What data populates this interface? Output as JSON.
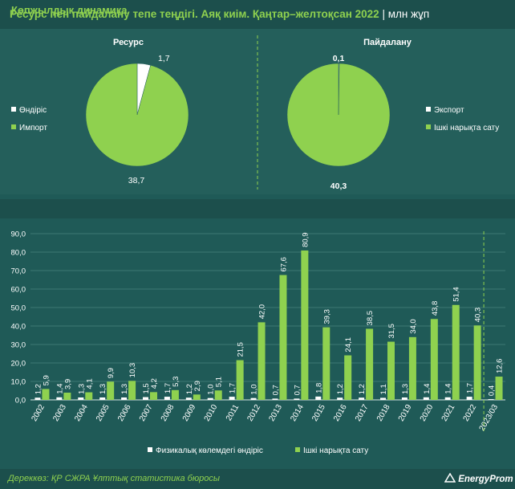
{
  "title": "Ресурс пен пайдалану тепе теңдігі. Аяқ киім. Қаңтар–желтоқсан 2022",
  "unit": "млн жұп",
  "section_title": "Көпжылдық динамика",
  "source": "Дереккөз: ҚР СЖРА Ұлттық статистика бюросы",
  "logo": "EnergyProm",
  "colors": {
    "green": "#8fd14f",
    "white": "#ffffff",
    "bg": "#1f5a57"
  },
  "chart_data": [
    {
      "type": "pie",
      "title": "Ресурс",
      "labels": [
        "Өндіріс",
        "Импорт"
      ],
      "values": [
        1.7,
        38.7
      ],
      "value_labels": [
        "1,7",
        "38,7"
      ],
      "colors": [
        "#ffffff",
        "#8fd14f"
      ]
    },
    {
      "type": "pie",
      "title": "Пайдалану",
      "labels": [
        "Экспорт",
        "Ішкі нарықта сату"
      ],
      "values": [
        0.1,
        40.3
      ],
      "value_labels": [
        "0,1",
        "40,3"
      ],
      "colors": [
        "#ffffff",
        "#8fd14f"
      ]
    },
    {
      "type": "bar",
      "categories": [
        "2002",
        "2003",
        "2004",
        "2005",
        "2006",
        "2007",
        "2008",
        "2009",
        "2010",
        "2011",
        "2012",
        "2013",
        "2014",
        "2015",
        "2016",
        "2017",
        "2018",
        "2019",
        "2020",
        "2021",
        "2022",
        "2023/03"
      ],
      "series": [
        {
          "name": "Физикалық көлемдегі өндіріс",
          "color": "#ffffff",
          "values": [
            1.2,
            1.4,
            1.3,
            1.3,
            1.3,
            1.5,
            1.7,
            1.2,
            1.0,
            1.7,
            1.0,
            0.7,
            0.7,
            1.8,
            1.2,
            1.2,
            1.1,
            1.3,
            1.4,
            1.4,
            1.7,
            0.4
          ],
          "labels": [
            "1,2",
            "1,4",
            "1,3",
            "1,3",
            "1,3",
            "1,5",
            "1,7",
            "1,2",
            "1,0",
            "1,7",
            "1,0",
            "0,7",
            "0,7",
            "1,8",
            "1,2",
            "1,2",
            "1,1",
            "1,3",
            "1,4",
            "1,4",
            "1,7",
            "0,4"
          ]
        },
        {
          "name": "Ішкі нарықта сату",
          "color": "#8fd14f",
          "values": [
            5.9,
            3.9,
            4.1,
            9.9,
            10.3,
            4.2,
            5.3,
            2.9,
            5.1,
            21.5,
            42.0,
            67.6,
            80.9,
            39.3,
            24.1,
            38.5,
            31.5,
            34.0,
            43.8,
            51.4,
            40.3,
            12.6
          ],
          "labels": [
            "5,9",
            "3,9",
            "4,1",
            "9,9",
            "10,3",
            "4,2",
            "5,3",
            "2,9",
            "5,1",
            "21,5",
            "42,0",
            "67,6",
            "80,9",
            "39,3",
            "24,1",
            "38,5",
            "31,5",
            "34,0",
            "43,8",
            "51,4",
            "40,3",
            "12,6"
          ]
        }
      ],
      "yticks": [
        "0,0",
        "10,0",
        "20,0",
        "30,0",
        "40,0",
        "50,0",
        "60,0",
        "70,0",
        "80,0",
        "90,0"
      ],
      "ylim": [
        0,
        90
      ],
      "grid": true,
      "legend": "bottom"
    }
  ]
}
